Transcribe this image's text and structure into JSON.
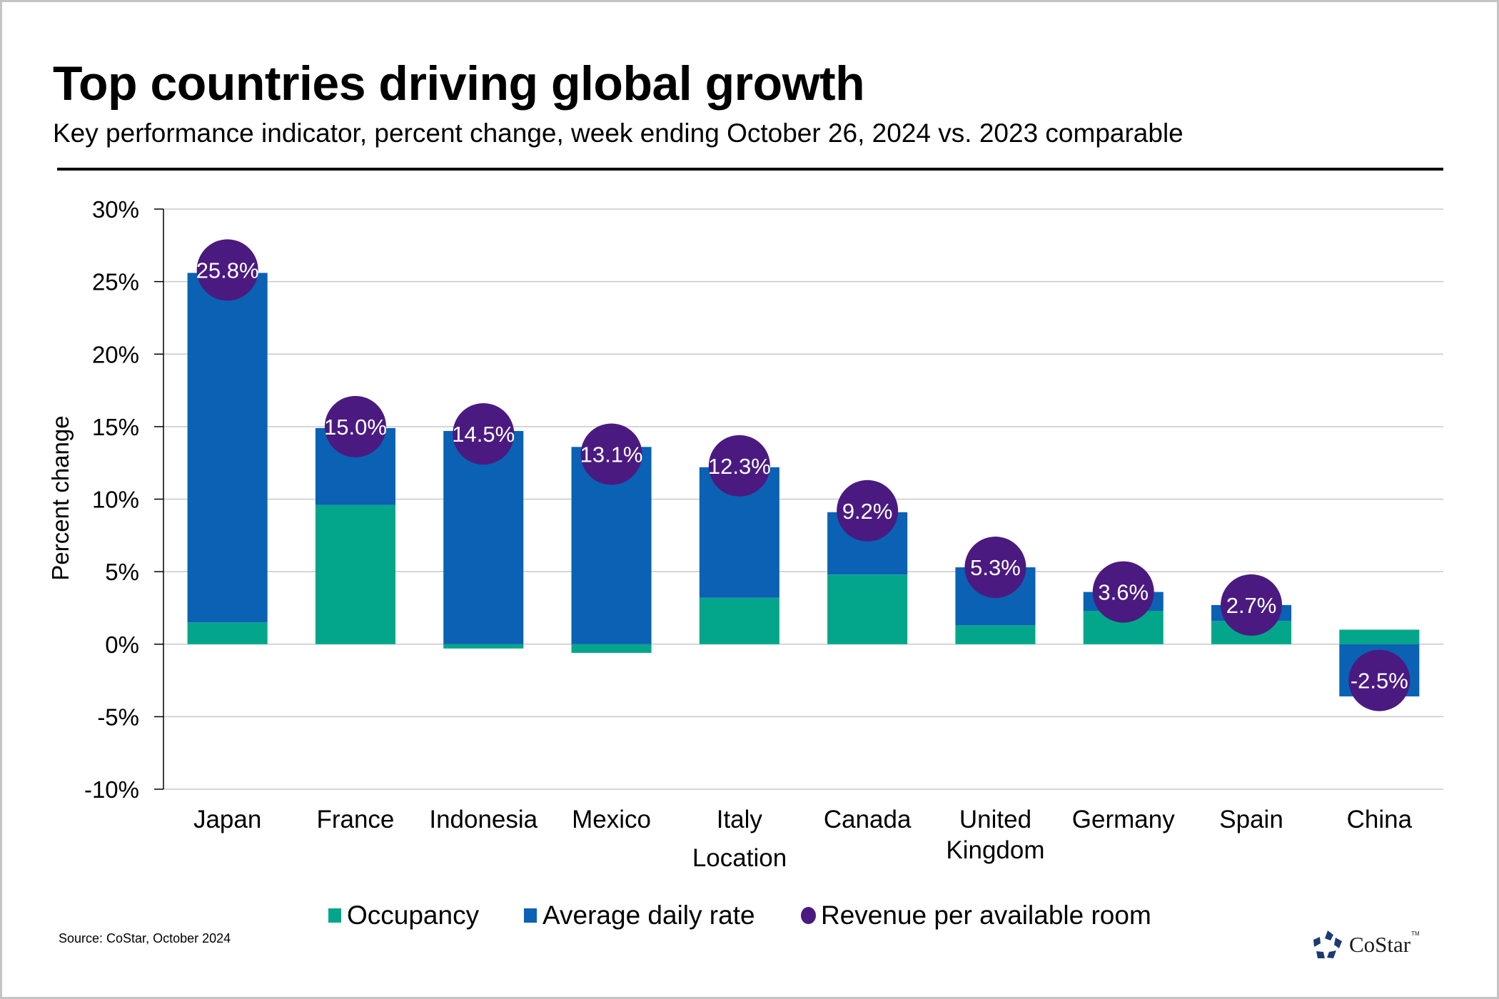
{
  "header": {
    "title": "Top countries driving global growth",
    "subtitle": "Key performance indicator, percent change, week ending October 26, 2024 vs. 2023 comparable"
  },
  "footer": {
    "source": "Source: CoStar, October 2024",
    "logo_text": "CoStar",
    "logo_tm": "TM",
    "logo_icon": "costar-star-icon"
  },
  "colors": {
    "occupancy": "#03A68A",
    "adr": "#0B61B4",
    "revpar": "#4A1A80",
    "grid": "#c8c8c8",
    "axis": "#000000"
  },
  "chart_data": {
    "type": "bar",
    "stacked": true,
    "title": "Top countries driving global growth",
    "subtitle": "Key performance indicator, percent change, week ending October 26, 2024 vs. 2023 comparable",
    "xlabel": "Location",
    "ylabel": "Percent change",
    "ylim": [
      -10,
      30
    ],
    "yticks": [
      -10,
      -5,
      0,
      5,
      10,
      15,
      20,
      25,
      30
    ],
    "ytick_labels": [
      "-10%",
      "-5%",
      "0%",
      "5%",
      "10%",
      "15%",
      "20%",
      "25%",
      "30%"
    ],
    "grid": true,
    "legend_position": "bottom",
    "categories": [
      [
        "Japan"
      ],
      [
        "France"
      ],
      [
        "Indonesia"
      ],
      [
        "Mexico"
      ],
      [
        "Italy"
      ],
      [
        "Canada"
      ],
      [
        "United",
        "Kingdom"
      ],
      [
        "Germany"
      ],
      [
        "Spain"
      ],
      [
        "China"
      ]
    ],
    "series": [
      {
        "name": "Occupancy",
        "kind": "bar",
        "values": [
          1.5,
          9.6,
          -0.3,
          -0.6,
          3.2,
          4.8,
          1.3,
          2.3,
          1.6,
          1.0
        ]
      },
      {
        "name": "Average daily rate",
        "kind": "bar",
        "values": [
          24.1,
          5.3,
          14.7,
          13.6,
          9.0,
          4.3,
          4.0,
          1.3,
          1.1,
          -3.6
        ]
      },
      {
        "name": "Revenue per available room",
        "kind": "dot",
        "values": [
          25.8,
          15.0,
          14.5,
          13.1,
          12.3,
          9.2,
          5.3,
          3.6,
          2.7,
          -2.5
        ],
        "labels": [
          "25.8%",
          "15.0%",
          "14.5%",
          "13.1%",
          "12.3%",
          "9.2%",
          "5.3%",
          "3.6%",
          "2.7%",
          "-2.5%"
        ]
      }
    ]
  }
}
